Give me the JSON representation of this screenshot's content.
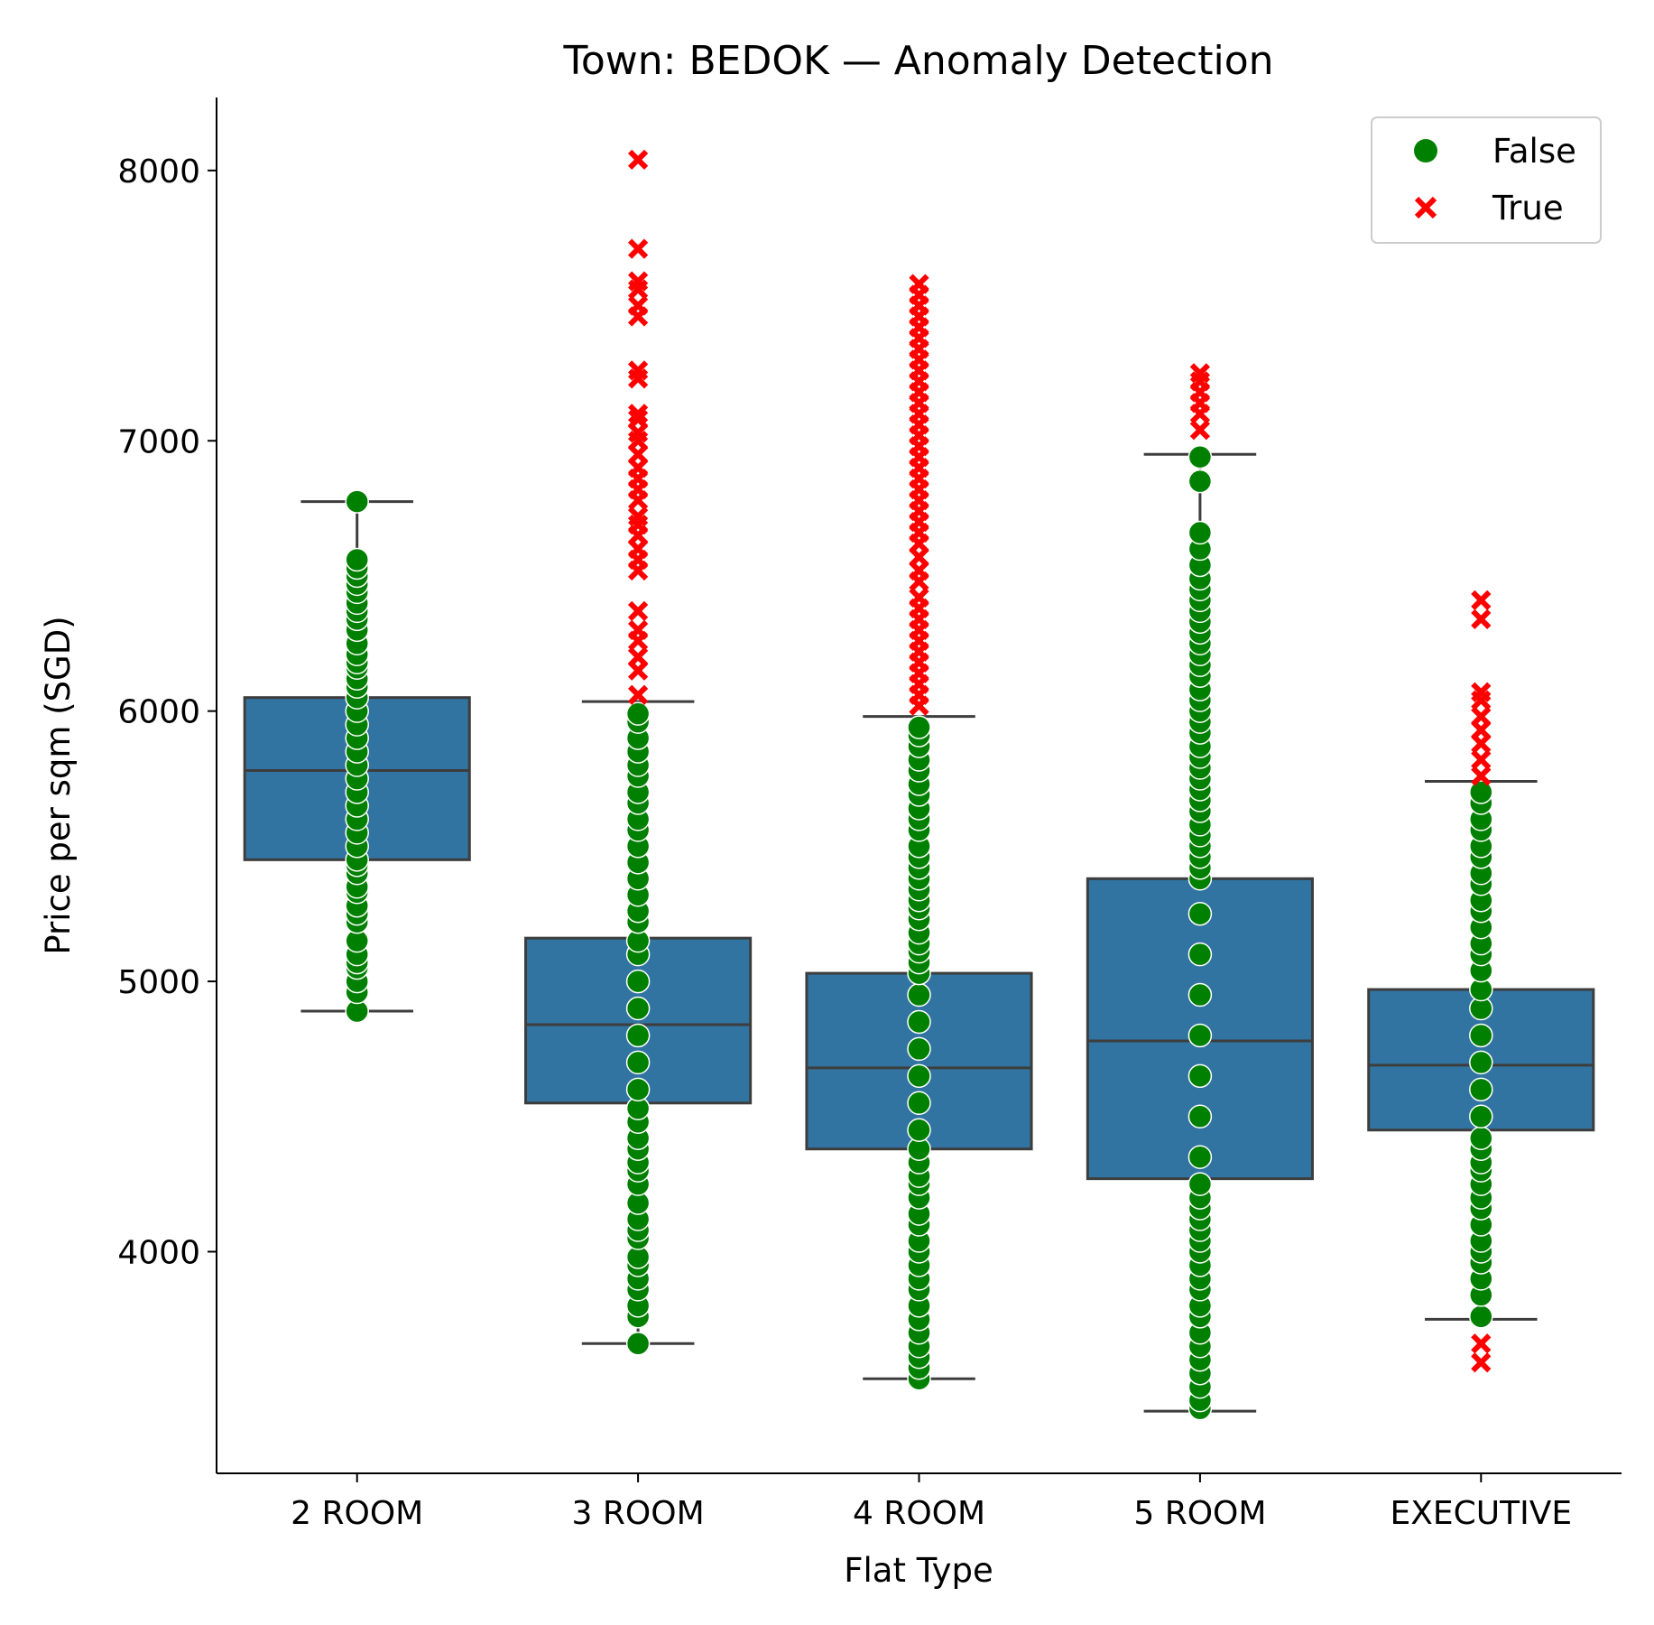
{
  "chart_data": {
    "type": "box",
    "title": "Town: BEDOK — Anomaly Detection",
    "xlabel": "Flat Type",
    "ylabel": "Price per sqm (SGD)",
    "ylim": [
      3180,
      8270
    ],
    "yticks": [
      4000,
      5000,
      6000,
      7000,
      8000
    ],
    "categories": [
      "2 ROOM",
      "3 ROOM",
      "4 ROOM",
      "5 ROOM",
      "EXECUTIVE"
    ],
    "box_color": "#3274a1",
    "line_color": "#3d3d3d",
    "boxes": [
      {
        "category": "2 ROOM",
        "whisker_low": 4890,
        "q1": 5450,
        "median": 5780,
        "q3": 6050,
        "whisker_high": 6775
      },
      {
        "category": "3 ROOM",
        "whisker_low": 3660,
        "q1": 4550,
        "median": 4840,
        "q3": 5160,
        "whisker_high": 6035
      },
      {
        "category": "4 ROOM",
        "whisker_low": 3530,
        "q1": 4380,
        "median": 4680,
        "q3": 5030,
        "whisker_high": 5980
      },
      {
        "category": "5 ROOM",
        "whisker_low": 3410,
        "q1": 4270,
        "median": 4780,
        "q3": 5380,
        "whisker_high": 6950
      },
      {
        "category": "EXECUTIVE",
        "whisker_low": 3750,
        "q1": 4450,
        "median": 4690,
        "q3": 4970,
        "whisker_high": 5740
      }
    ],
    "legend": {
      "title": "",
      "position": "top-right",
      "entries": [
        {
          "label": "False",
          "marker": "circle",
          "color": "#008000"
        },
        {
          "label": "True",
          "marker": "x",
          "color": "#ff0000"
        }
      ]
    },
    "points": {
      "false_color": "#008000",
      "true_color": "#ff0000",
      "series": [
        {
          "category": "2 ROOM",
          "false": [
            4890,
            4960,
            5000,
            5050,
            5070,
            5100,
            5150,
            5220,
            5250,
            5280,
            5330,
            5350,
            5400,
            5430,
            5450,
            5500,
            5550,
            5600,
            5650,
            5700,
            5750,
            5800,
            5850,
            5900,
            5950,
            6000,
            6050,
            6090,
            6120,
            6160,
            6180,
            6210,
            6250,
            6300,
            6340,
            6370,
            6400,
            6440,
            6470,
            6500,
            6530,
            6560,
            6775
          ],
          "true": []
        },
        {
          "category": "3 ROOM",
          "false": [
            3660,
            3760,
            3800,
            3860,
            3900,
            3950,
            3980,
            4050,
            4080,
            4120,
            4180,
            4250,
            4300,
            4330,
            4380,
            4420,
            4480,
            4530,
            4600,
            4700,
            4800,
            4900,
            5000,
            5100,
            5150,
            5220,
            5260,
            5320,
            5380,
            5440,
            5500,
            5560,
            5600,
            5660,
            5700,
            5760,
            5800,
            5850,
            5900,
            5960,
            5990
          ],
          "true": [
            6060,
            6150,
            6200,
            6260,
            6300,
            6370,
            6520,
            6560,
            6600,
            6650,
            6690,
            6720,
            6780,
            6820,
            6860,
            6900,
            6950,
            7000,
            7030,
            7080,
            7100,
            7230,
            7260,
            7460,
            7500,
            7560,
            7590,
            7710,
            8040
          ]
        },
        {
          "category": "4 ROOM",
          "false": [
            3530,
            3570,
            3610,
            3650,
            3700,
            3750,
            3800,
            3860,
            3900,
            3950,
            4000,
            4040,
            4100,
            4140,
            4200,
            4250,
            4280,
            4330,
            4380,
            4450,
            4550,
            4650,
            4750,
            4850,
            4950,
            5030,
            5070,
            5110,
            5140,
            5180,
            5230,
            5270,
            5300,
            5340,
            5380,
            5420,
            5460,
            5500,
            5560,
            5600,
            5640,
            5690,
            5730,
            5780,
            5820,
            5870,
            5910,
            5940
          ],
          "true": [
            6020,
            6060,
            6100,
            6140,
            6180,
            6220,
            6260,
            6300,
            6340,
            6380,
            6420,
            6480,
            6520,
            6570,
            6620,
            6660,
            6700,
            6740,
            6780,
            6820,
            6860,
            6900,
            6940,
            6980,
            7020,
            7060,
            7100,
            7140,
            7180,
            7220,
            7260,
            7300,
            7340,
            7380,
            7420,
            7460,
            7500,
            7540,
            7580
          ]
        },
        {
          "category": "5 ROOM",
          "false": [
            3420,
            3450,
            3500,
            3550,
            3600,
            3650,
            3700,
            3760,
            3800,
            3860,
            3900,
            3950,
            4000,
            4040,
            4080,
            4120,
            4160,
            4200,
            4250,
            4350,
            4500,
            4650,
            4800,
            4950,
            5100,
            5250,
            5380,
            5420,
            5460,
            5500,
            5540,
            5580,
            5630,
            5670,
            5710,
            5750,
            5790,
            5830,
            5870,
            5920,
            5960,
            6000,
            6040,
            6080,
            6130,
            6170,
            6210,
            6250,
            6290,
            6330,
            6370,
            6410,
            6450,
            6490,
            6540,
            6600,
            6660,
            6850,
            6940
          ],
          "true": [
            7040,
            7100,
            7140,
            7180,
            7220,
            7250
          ]
        },
        {
          "category": "EXECUTIVE",
          "false": [
            3760,
            3840,
            3900,
            3960,
            4000,
            4040,
            4100,
            4160,
            4200,
            4250,
            4300,
            4330,
            4380,
            4420,
            4500,
            4600,
            4700,
            4800,
            4900,
            4970,
            5040,
            5100,
            5140,
            5200,
            5260,
            5300,
            5360,
            5400,
            5460,
            5500,
            5560,
            5600,
            5660,
            5700
          ],
          "true": [
            3590,
            3660,
            5760,
            5820,
            5880,
            5930,
            5980,
            6040,
            6070,
            6340,
            6410
          ]
        }
      ]
    }
  }
}
